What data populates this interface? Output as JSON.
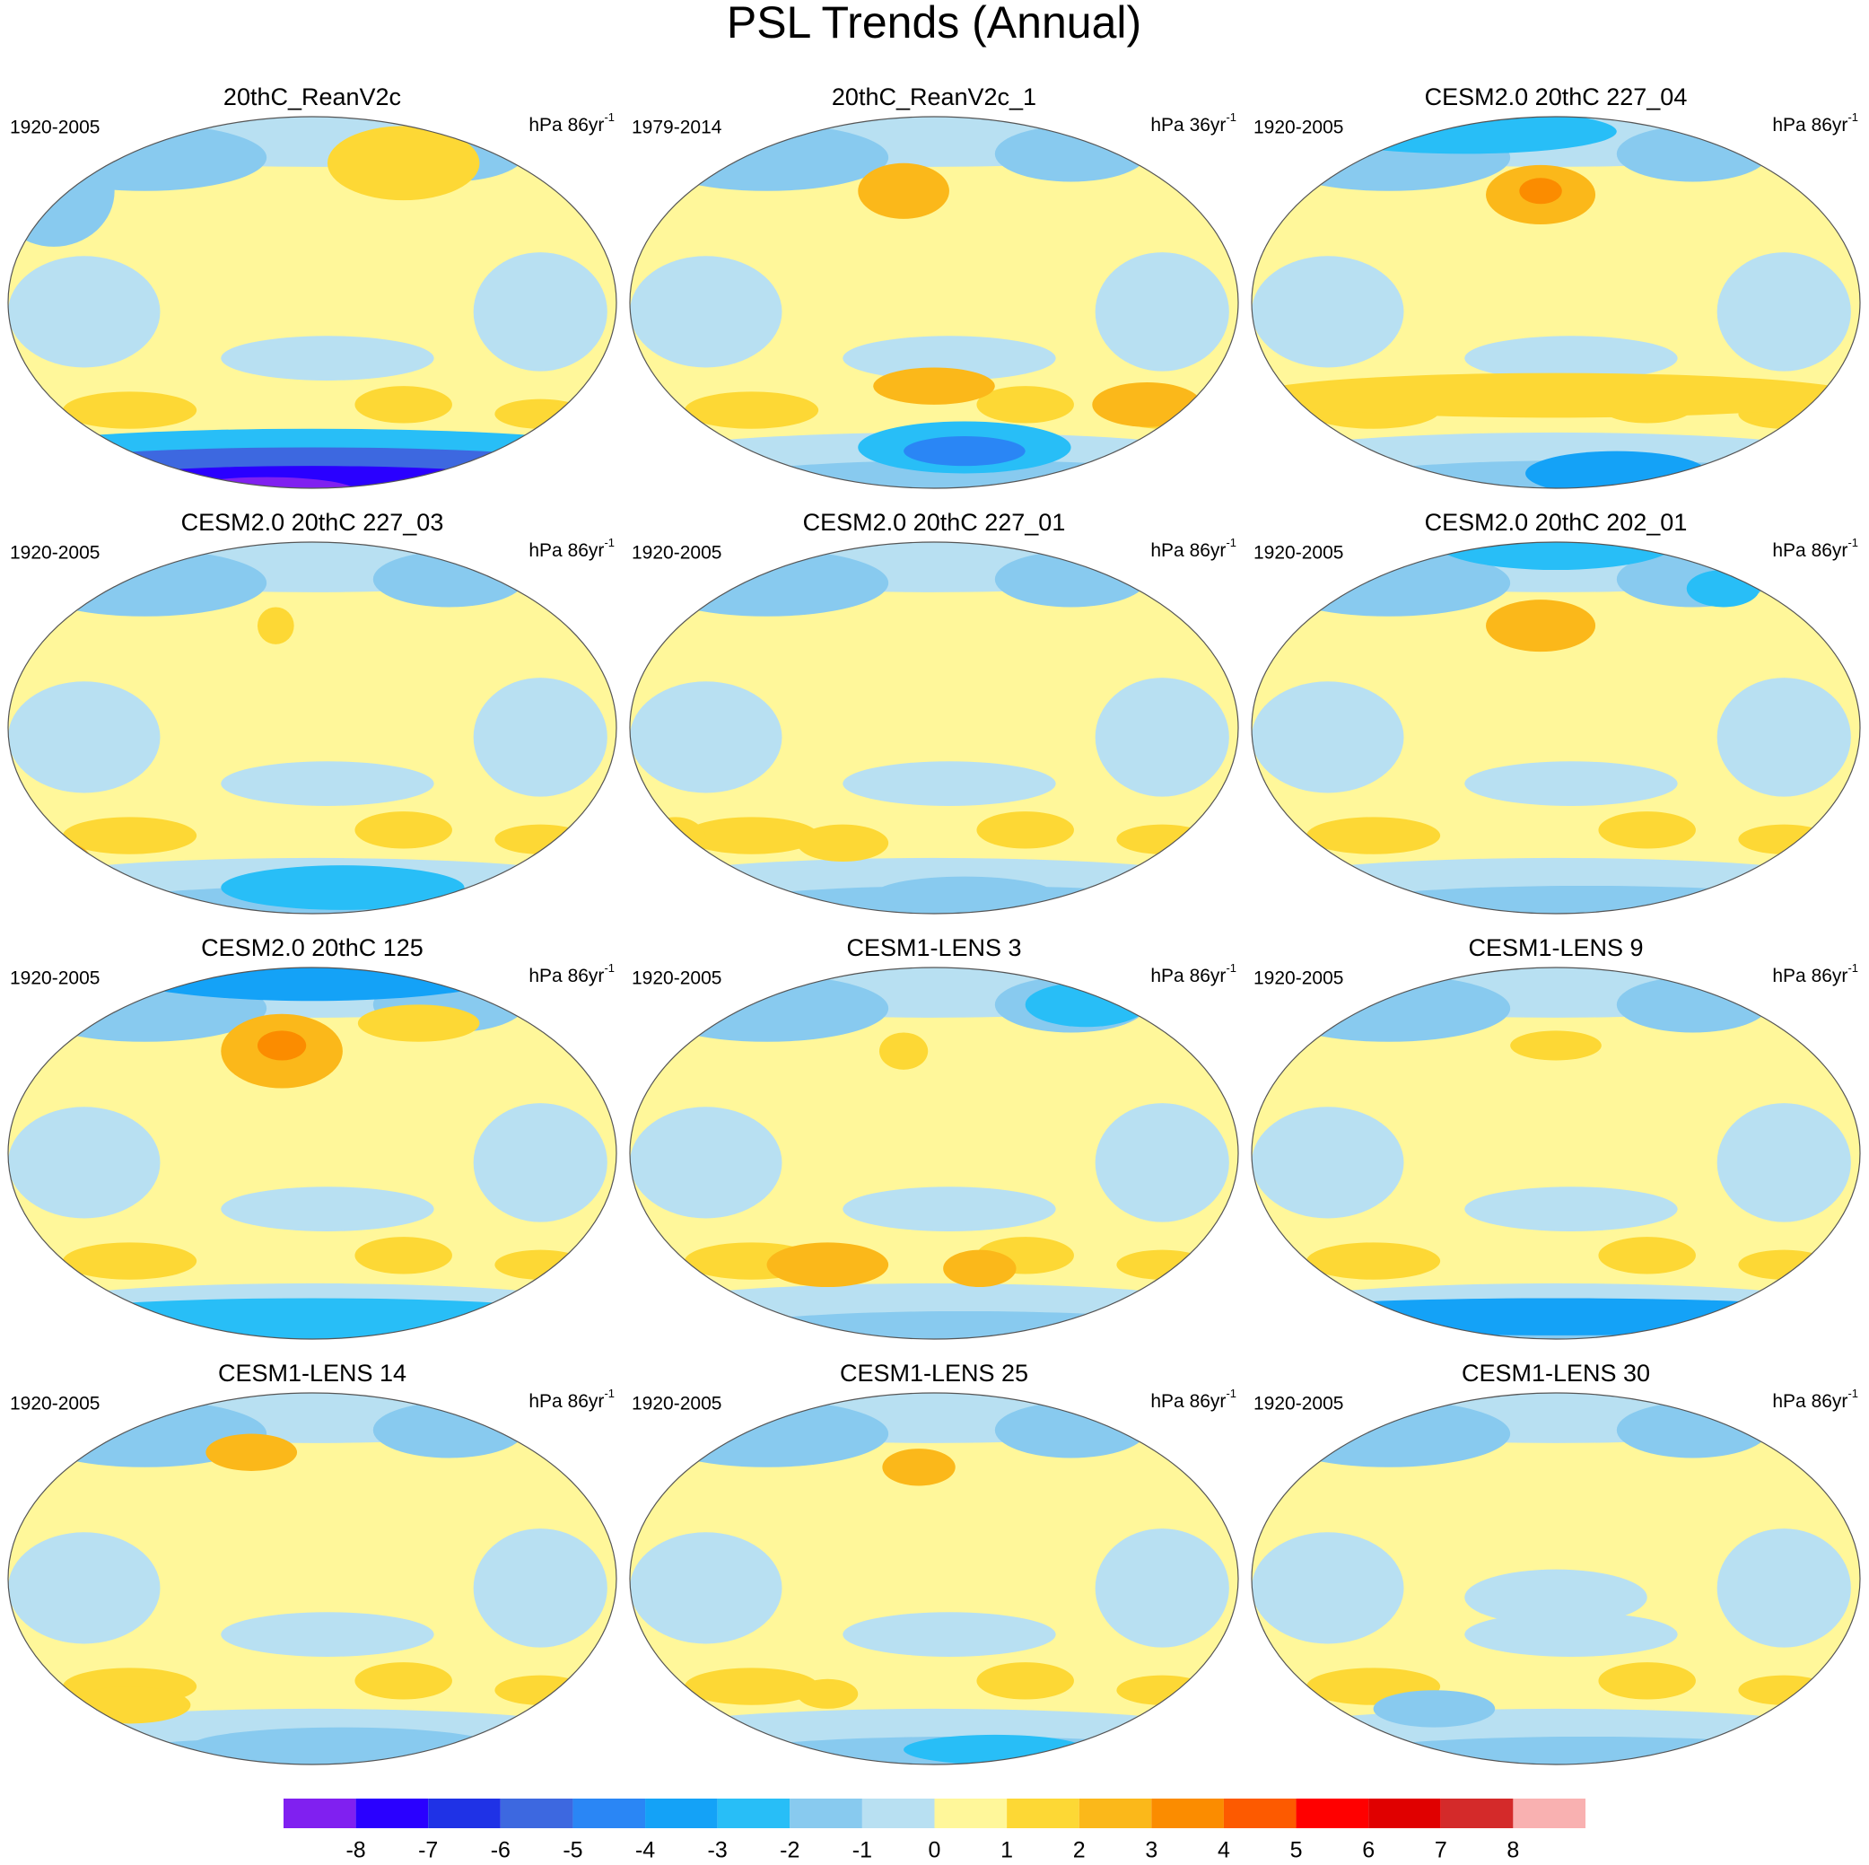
{
  "title": "PSL Trends (Annual)",
  "panels": [
    {
      "title": "20thC_ReanV2c",
      "period": "1920-2005",
      "units": "hPa 86yr",
      "units_exp": "-1"
    },
    {
      "title": "20thC_ReanV2c_1",
      "period": "1979-2014",
      "units": "hPa 36yr",
      "units_exp": "-1"
    },
    {
      "title": "CESM2.0 20thC 227_04",
      "period": "1920-2005",
      "units": "hPa 86yr",
      "units_exp": "-1"
    },
    {
      "title": "CESM2.0 20thC 227_03",
      "period": "1920-2005",
      "units": "hPa 86yr",
      "units_exp": "-1"
    },
    {
      "title": "CESM2.0 20thC 227_01",
      "period": "1920-2005",
      "units": "hPa 86yr",
      "units_exp": "-1"
    },
    {
      "title": "CESM2.0 20thC 202_01",
      "period": "1920-2005",
      "units": "hPa 86yr",
      "units_exp": "-1"
    },
    {
      "title": "CESM2.0 20thC 125",
      "period": "1920-2005",
      "units": "hPa 86yr",
      "units_exp": "-1"
    },
    {
      "title": "CESM1-LENS 3",
      "period": "1920-2005",
      "units": "hPa 86yr",
      "units_exp": "-1"
    },
    {
      "title": "CESM1-LENS 9",
      "period": "1920-2005",
      "units": "hPa 86yr",
      "units_exp": "-1"
    },
    {
      "title": "CESM1-LENS 14",
      "period": "1920-2005",
      "units": "hPa 86yr",
      "units_exp": "-1"
    },
    {
      "title": "CESM1-LENS 25",
      "period": "1920-2005",
      "units": "hPa 86yr",
      "units_exp": "-1"
    },
    {
      "title": "CESM1-LENS 30",
      "period": "1920-2005",
      "units": "hPa 86yr",
      "units_exp": "-1"
    }
  ],
  "colorbar": {
    "colors": [
      "#8020f0",
      "#2a00ff",
      "#1f32e6",
      "#3d68e0",
      "#2a86f5",
      "#14a2f7",
      "#28bef7",
      "#88caef",
      "#b8e0f2",
      "#fff79a",
      "#fdd835",
      "#fbb81a",
      "#fb8c00",
      "#fd5a00",
      "#ff0000",
      "#e00000",
      "#d42a2a",
      "#f9b1b1"
    ],
    "labels": [
      -8,
      -7,
      -6,
      -5,
      -4,
      -3,
      -2,
      -1,
      0,
      1,
      2,
      3,
      4,
      5,
      6,
      7,
      8
    ]
  }
}
